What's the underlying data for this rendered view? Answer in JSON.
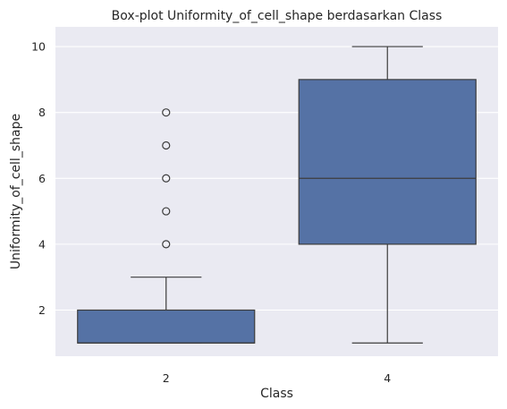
{
  "chart_data": {
    "type": "box",
    "title": "Box-plot Uniformity_of_cell_shape berdasarkan Class",
    "xlabel": "Class",
    "ylabel": "Uniformity_of_cell_shape",
    "categories": [
      "2",
      "4"
    ],
    "yticks": [
      "2",
      "4",
      "6",
      "8",
      "10"
    ],
    "ylim": [
      0.6,
      10.6
    ],
    "grid": true,
    "colors": {
      "box_fill": "#5572a5",
      "box_edge": "#3d3d3d",
      "plot_bg": "#eaeaf2",
      "grid": "#ffffff"
    },
    "boxes": [
      {
        "category": "2",
        "whisker_low": 1,
        "q1": 1,
        "median": 1,
        "q3": 2,
        "whisker_high": 3,
        "outliers": [
          4,
          5,
          6,
          7,
          8
        ]
      },
      {
        "category": "4",
        "whisker_low": 1,
        "q1": 4,
        "median": 6,
        "q3": 9,
        "whisker_high": 10,
        "outliers": []
      }
    ]
  }
}
